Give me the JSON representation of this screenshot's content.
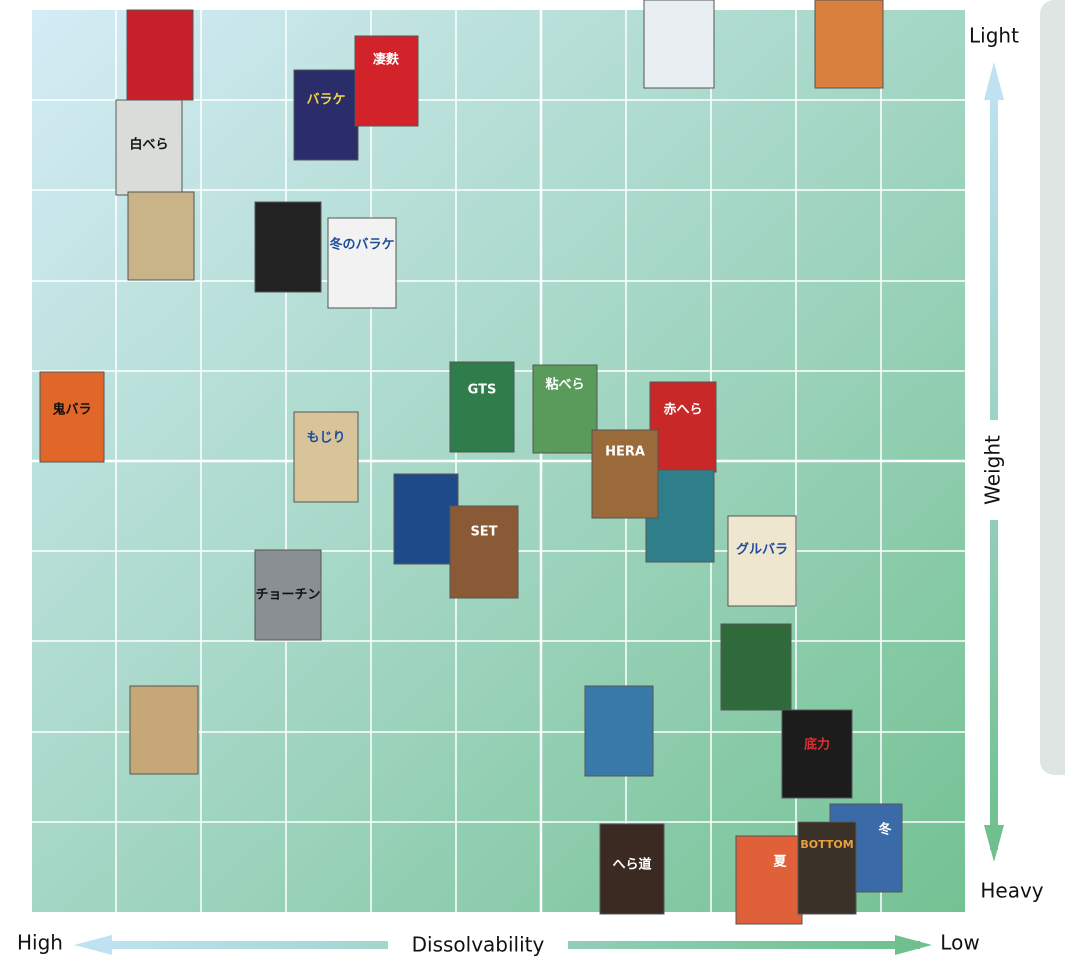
{
  "axis": {
    "top": "Light",
    "bottom": "Heavy",
    "vertical": "Weight",
    "left": "High",
    "right": "Low",
    "horizontal": "Dissolvability"
  },
  "products": [
    "白べら",
    "バラケ",
    "凄麩",
    "冬のバラケ",
    "鬼バラ",
    "GTS",
    "粘べら",
    "赤へら",
    "HERA",
    "もじり",
    "SET",
    "グルバラ",
    "チョーチン",
    "底力",
    "冬",
    "へら道",
    "夏",
    "BOTTOM"
  ]
}
